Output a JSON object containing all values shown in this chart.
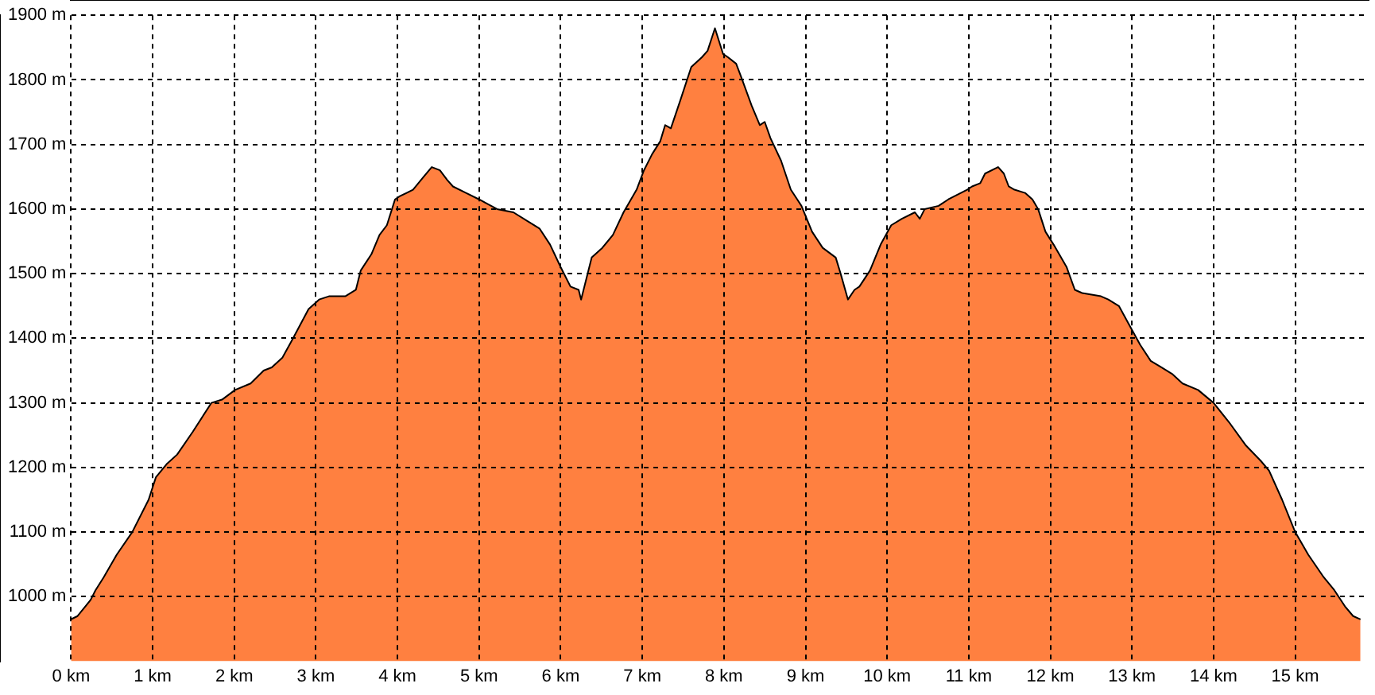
{
  "chart_data": {
    "type": "area",
    "color": "#ff8040",
    "grid": true,
    "xlim": [
      0,
      15.9
    ],
    "ylim": [
      900,
      1900
    ],
    "xticks": [
      {
        "value": 0,
        "label": "0 km"
      },
      {
        "value": 1,
        "label": "1 km"
      },
      {
        "value": 2,
        "label": "2 km"
      },
      {
        "value": 3,
        "label": "3 km"
      },
      {
        "value": 4,
        "label": "4 km"
      },
      {
        "value": 5,
        "label": "5 km"
      },
      {
        "value": 6,
        "label": "6 km"
      },
      {
        "value": 7,
        "label": "7 km"
      },
      {
        "value": 8,
        "label": "8 km"
      },
      {
        "value": 9,
        "label": "9 km"
      },
      {
        "value": 10,
        "label": "10 km"
      },
      {
        "value": 11,
        "label": "11 km"
      },
      {
        "value": 12,
        "label": "12 km"
      },
      {
        "value": 13,
        "label": "13 km"
      },
      {
        "value": 14,
        "label": "14 km"
      },
      {
        "value": 15,
        "label": "15 km"
      }
    ],
    "yticks": [
      {
        "value": 1000,
        "label": "1000 m"
      },
      {
        "value": 1100,
        "label": "1100 m"
      },
      {
        "value": 1200,
        "label": "1200 m"
      },
      {
        "value": 1300,
        "label": "1300 m"
      },
      {
        "value": 1400,
        "label": "1400 m"
      },
      {
        "value": 1500,
        "label": "1500 m"
      },
      {
        "value": 1600,
        "label": "1600 m"
      },
      {
        "value": 1700,
        "label": "1700 m"
      },
      {
        "value": 1800,
        "label": "1800 m"
      },
      {
        "value": 1900,
        "label": "1900 m"
      }
    ],
    "x": [
      0,
      0.08,
      0.24,
      0.3,
      0.4,
      0.56,
      0.75,
      0.95,
      1.04,
      1.17,
      1.3,
      1.49,
      1.72,
      1.85,
      2.01,
      2.2,
      2.36,
      2.46,
      2.59,
      2.72,
      2.91,
      3.04,
      3.16,
      3.36,
      3.49,
      3.55,
      3.68,
      3.78,
      3.87,
      3.97,
      4.03,
      4.19,
      4.32,
      4.42,
      4.52,
      4.61,
      4.68,
      4.84,
      5.0,
      5.22,
      5.42,
      5.61,
      5.74,
      5.87,
      6.0,
      6.12,
      6.22,
      6.25,
      6.32,
      6.38,
      6.51,
      6.64,
      6.77,
      6.93,
      7.02,
      7.12,
      7.22,
      7.28,
      7.35,
      7.47,
      7.6,
      7.73,
      7.8,
      7.89,
      7.99,
      8.05,
      8.15,
      8.21,
      8.34,
      8.44,
      8.5,
      8.57,
      8.7,
      8.82,
      8.95,
      9.08,
      9.21,
      9.37,
      9.43,
      9.52,
      9.6,
      9.66,
      9.79,
      9.92,
      10.05,
      10.18,
      10.34,
      10.4,
      10.46,
      10.63,
      10.75,
      10.98,
      11.04,
      11.14,
      11.2,
      11.36,
      11.43,
      11.49,
      11.56,
      11.69,
      11.78,
      11.85,
      11.94,
      12.04,
      12.2,
      12.3,
      12.39,
      12.62,
      12.71,
      12.84,
      12.97,
      13.1,
      13.23,
      13.36,
      13.49,
      13.62,
      13.81,
      14.0,
      14.19,
      14.39,
      14.58,
      14.68,
      14.84,
      15.0,
      15.16,
      15.35,
      15.48,
      15.61,
      15.71,
      15.8
    ],
    "values": [
      965,
      970,
      995,
      1010,
      1030,
      1065,
      1100,
      1150,
      1185,
      1205,
      1220,
      1255,
      1300,
      1305,
      1320,
      1330,
      1350,
      1355,
      1370,
      1400,
      1445,
      1460,
      1465,
      1465,
      1475,
      1505,
      1530,
      1560,
      1575,
      1615,
      1620,
      1630,
      1650,
      1665,
      1660,
      1645,
      1635,
      1625,
      1615,
      1600,
      1595,
      1580,
      1570,
      1545,
      1510,
      1480,
      1475,
      1460,
      1495,
      1525,
      1540,
      1560,
      1595,
      1630,
      1660,
      1685,
      1705,
      1730,
      1725,
      1770,
      1820,
      1835,
      1845,
      1880,
      1840,
      1835,
      1825,
      1805,
      1760,
      1730,
      1735,
      1710,
      1675,
      1630,
      1605,
      1565,
      1540,
      1525,
      1500,
      1460,
      1475,
      1480,
      1505,
      1545,
      1575,
      1585,
      1595,
      1585,
      1600,
      1605,
      1615,
      1630,
      1635,
      1640,
      1655,
      1665,
      1655,
      1635,
      1630,
      1625,
      1615,
      1600,
      1565,
      1545,
      1510,
      1475,
      1470,
      1465,
      1460,
      1450,
      1420,
      1390,
      1365,
      1355,
      1345,
      1330,
      1320,
      1300,
      1270,
      1235,
      1210,
      1195,
      1150,
      1100,
      1065,
      1030,
      1010,
      985,
      970,
      965
    ]
  }
}
